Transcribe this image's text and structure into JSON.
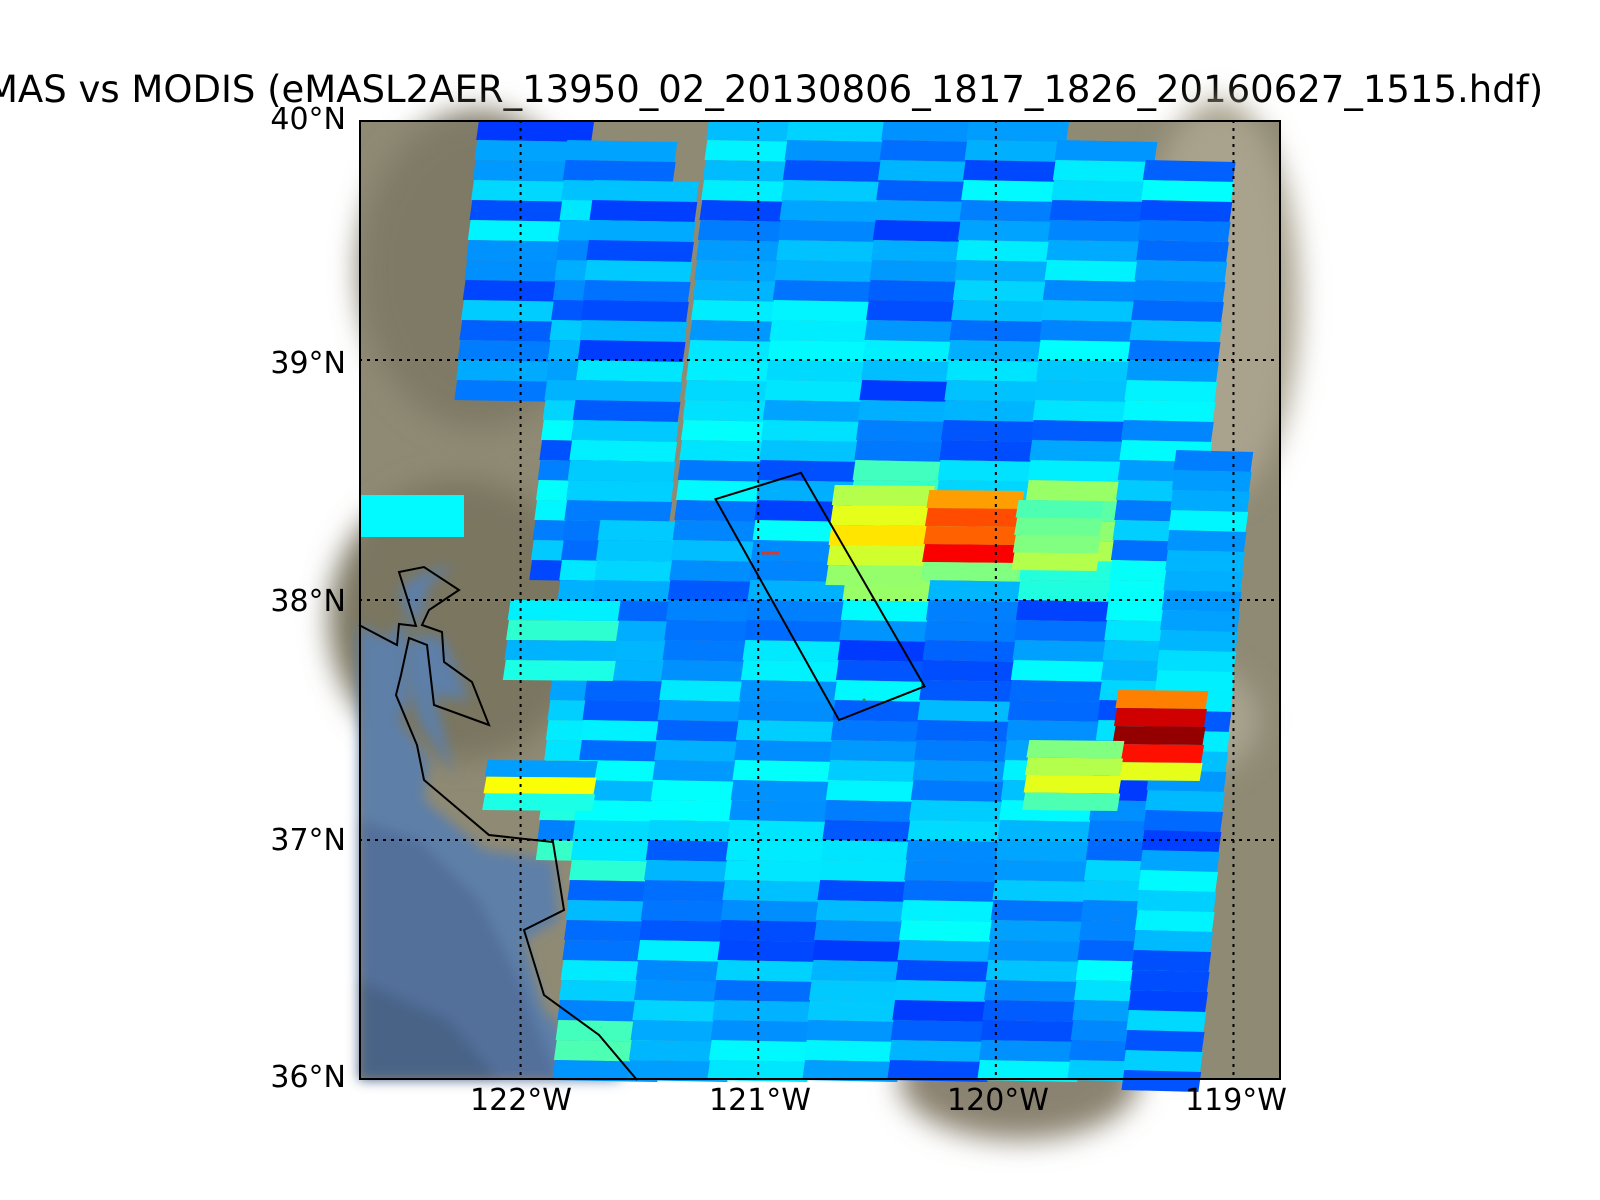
{
  "title": "MAS vs MODIS (eMASL2AER_13950_02_20130806_1817_1826_20160627_1515.hdf)",
  "map": {
    "lat_labels": [
      "40°N",
      "39°N",
      "38°N",
      "37°N",
      "36°N"
    ],
    "lon_labels": [
      "122°W",
      "121°W",
      "120°W",
      "119°W"
    ],
    "extent": {
      "lon_min": -122.68,
      "lon_max": -118.8,
      "lat_min": 36.0,
      "lat_max": 40.0
    },
    "graticule_lats": [
      40,
      39,
      38,
      37,
      36
    ],
    "graticule_lons": [
      -122,
      -121,
      -120,
      -119
    ],
    "colors": {
      "land": "#8f8a74",
      "ocean": "#5d7fa8",
      "outline": "#000000",
      "colormap": "jet"
    },
    "flight_box": [
      [
        -121.18,
        38.42
      ],
      [
        -120.82,
        38.53
      ],
      [
        -120.3,
        37.64
      ],
      [
        -120.66,
        37.5
      ]
    ]
  }
}
